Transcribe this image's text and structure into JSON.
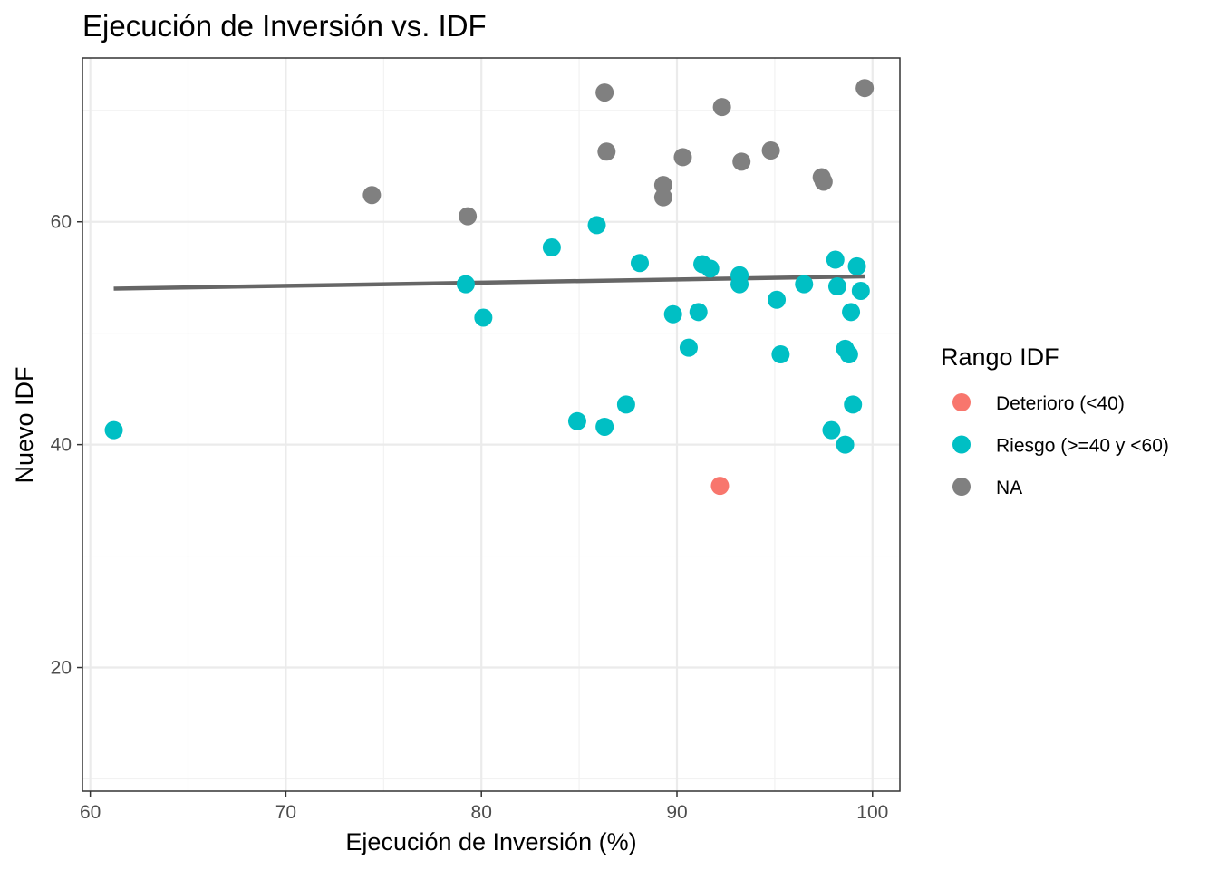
{
  "chart_data": {
    "type": "scatter",
    "title": "Ejecución de Inversión vs. IDF",
    "xlabel": "Ejecución de Inversión (%)",
    "ylabel": "Nuevo IDF",
    "xlim": [
      59.6,
      101.4
    ],
    "ylim": [
      8.9,
      74.7
    ],
    "x_ticks": [
      60,
      70,
      80,
      90,
      100
    ],
    "x_tick_labels": [
      "60",
      "70",
      "80",
      "90",
      "100"
    ],
    "y_ticks": [
      20,
      40,
      60
    ],
    "y_tick_labels": [
      "20",
      "40",
      "60"
    ],
    "grid": true,
    "legend": {
      "title": "Rango IDF",
      "placement": "right",
      "entries": [
        {
          "label": "Deterioro (<40)",
          "color": "#F8766D"
        },
        {
          "label": "Riesgo (>=40 y <60)",
          "color": "#00BFC4"
        },
        {
          "label": "NA",
          "color": "#808080"
        }
      ]
    },
    "trend_line": {
      "x": [
        61.2,
        99.6
      ],
      "y": [
        54.0,
        55.1
      ],
      "color": "#666666"
    },
    "series": [
      {
        "name": "Deterioro (<40)",
        "color": "#F8766D",
        "points": [
          [
            92.2,
            36.3
          ]
        ]
      },
      {
        "name": "Riesgo (>=40 y <60)",
        "color": "#00BFC4",
        "points": [
          [
            61.2,
            41.3
          ],
          [
            79.2,
            54.4
          ],
          [
            80.1,
            51.4
          ],
          [
            83.6,
            57.7
          ],
          [
            84.9,
            42.1
          ],
          [
            85.9,
            59.7
          ],
          [
            86.3,
            41.6
          ],
          [
            87.4,
            43.6
          ],
          [
            88.1,
            56.3
          ],
          [
            89.8,
            51.7
          ],
          [
            90.6,
            48.7
          ],
          [
            91.1,
            51.9
          ],
          [
            91.3,
            56.2
          ],
          [
            91.7,
            55.8
          ],
          [
            93.2,
            55.2
          ],
          [
            93.2,
            54.4
          ],
          [
            95.1,
            53.0
          ],
          [
            95.3,
            48.1
          ],
          [
            96.5,
            54.4
          ],
          [
            97.9,
            41.3
          ],
          [
            98.1,
            56.6
          ],
          [
            98.2,
            54.2
          ],
          [
            98.6,
            48.6
          ],
          [
            98.6,
            40.0
          ],
          [
            98.8,
            48.1
          ],
          [
            98.9,
            51.9
          ],
          [
            99.0,
            43.6
          ],
          [
            99.2,
            56.0
          ],
          [
            99.4,
            53.8
          ]
        ]
      },
      {
        "name": "NA",
        "color": "#808080",
        "points": [
          [
            74.4,
            62.4
          ],
          [
            79.3,
            60.5
          ],
          [
            86.3,
            71.6
          ],
          [
            86.4,
            66.3
          ],
          [
            89.3,
            63.3
          ],
          [
            89.3,
            62.2
          ],
          [
            90.3,
            65.8
          ],
          [
            92.3,
            70.3
          ],
          [
            93.3,
            65.4
          ],
          [
            94.8,
            66.4
          ],
          [
            97.4,
            64.0
          ],
          [
            97.5,
            63.6
          ],
          [
            99.6,
            72.0
          ]
        ]
      }
    ]
  }
}
